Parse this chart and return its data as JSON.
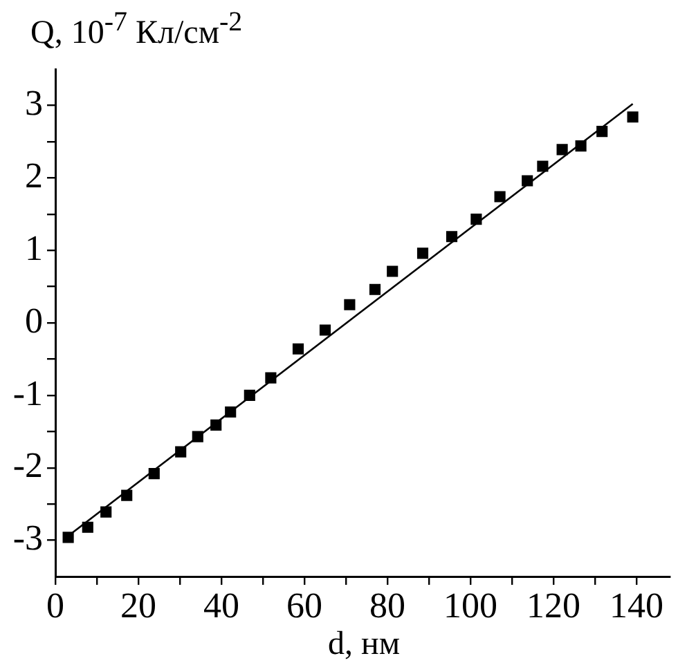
{
  "chart_data": {
    "type": "scatter",
    "xlabel": "d, нм",
    "ylabel": "Q, 10$^{-7}$ Кл/см$^{-2}$",
    "xlim": [
      0,
      148
    ],
    "ylim": [
      -3.5,
      3.5
    ],
    "xticks": [
      0,
      {
        "value": 10,
        "label": null
      },
      20,
      {
        "value": 30,
        "label": null
      },
      40,
      {
        "value": 50,
        "label": null
      },
      60,
      {
        "value": 70,
        "label": null
      },
      80,
      {
        "value": 90,
        "label": null
      },
      100,
      {
        "value": 110,
        "label": null
      },
      120,
      {
        "value": 130,
        "label": null
      },
      140
    ],
    "yticks": [
      -3,
      {
        "value": -2.5,
        "label": null
      },
      -2,
      {
        "value": -1.5,
        "label": null
      },
      -1,
      {
        "value": -0.5,
        "label": null
      },
      0,
      {
        "value": 0.5,
        "label": null
      },
      1,
      {
        "value": 1.5,
        "label": null
      },
      2,
      {
        "value": 2.5,
        "label": null
      },
      3
    ],
    "grid": false,
    "legend": false,
    "series": [
      {
        "type": "scatter",
        "color": "#000000",
        "marker": "square",
        "x": [
          3.1,
          7.8,
          12.2,
          17.2,
          23.8,
          30.2,
          34.3,
          38.7,
          42.2,
          46.8,
          51.9,
          58.5,
          65.0,
          70.9,
          77.0,
          81.2,
          88.5,
          95.5,
          101.4,
          107.1,
          113.7,
          117.4,
          122.1,
          126.6,
          131.7,
          139.1
        ],
        "values": [
          -2.96,
          -2.82,
          -2.61,
          -2.38,
          -2.08,
          -1.78,
          -1.57,
          -1.41,
          -1.23,
          -1.0,
          -0.76,
          -0.36,
          -0.1,
          0.25,
          0.46,
          0.71,
          0.96,
          1.19,
          1.43,
          1.74,
          1.96,
          2.16,
          2.39,
          2.44,
          2.64,
          2.84
        ]
      },
      {
        "type": "line",
        "color": "#000000",
        "marker": "none",
        "line_style": "solid",
        "x": [
          3.1,
          139.1
        ],
        "values": [
          -2.94,
          3.02
        ]
      }
    ]
  }
}
